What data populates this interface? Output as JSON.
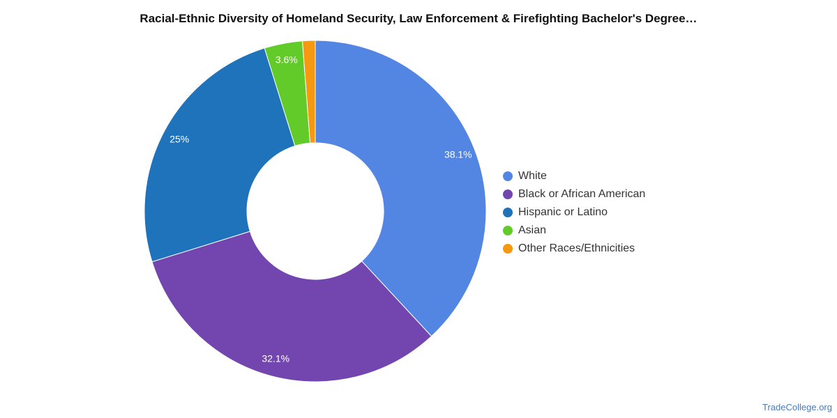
{
  "chart_data": {
    "type": "pie",
    "title": "Racial-Ethnic Diversity of Homeland Security, Law Enforcement & Firefighting Bachelor's Degree…",
    "categories": [
      "White",
      "Black or African American",
      "Hispanic or Latino",
      "Asian",
      "Other Races/Ethnicities"
    ],
    "values": [
      38.1,
      32.1,
      25,
      3.6,
      1.2
    ],
    "data_labels": [
      "38.1%",
      "32.1%",
      "25%",
      "3.6%",
      ""
    ],
    "colors": [
      "#5385e3",
      "#7346af",
      "#1e73bb",
      "#62cb29",
      "#f79811"
    ],
    "donut": true,
    "legend_position": "right"
  },
  "legend": {
    "items": [
      {
        "label": "White",
        "color": "#5385e3"
      },
      {
        "label": "Black or African American",
        "color": "#7346af"
      },
      {
        "label": "Hispanic or Latino",
        "color": "#1e73bb"
      },
      {
        "label": "Asian",
        "color": "#62cb29"
      },
      {
        "label": "Other Races/Ethnicities",
        "color": "#f79811"
      }
    ]
  },
  "source": {
    "text": "TradeCollege.org"
  }
}
